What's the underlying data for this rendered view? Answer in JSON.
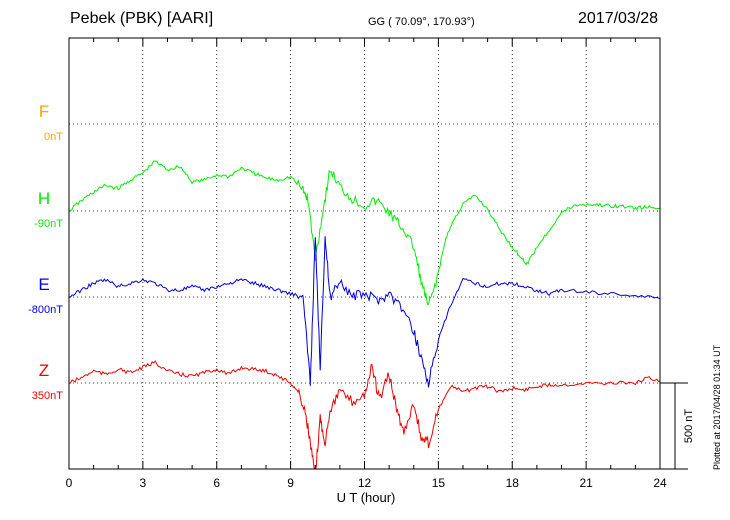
{
  "header": {
    "station": "Pebek (PBK)  [AARI]",
    "coords": "GG ( 70.09°, 170.93°)",
    "date": "2017/03/28"
  },
  "footer": {
    "plotted": "Plotted at 2017/04/28 01:34  UT"
  },
  "chart_data": {
    "type": "line",
    "title": "Pebek (PBK)  [AARI]",
    "xlabel": "U T (hour)",
    "ylabel": "",
    "xlim": [
      0,
      24
    ],
    "xticks": [
      0,
      3,
      6,
      9,
      12,
      15,
      18,
      21,
      24
    ],
    "tick_labels": [
      "0",
      "3",
      "6",
      "9",
      "12",
      "15",
      "18",
      "21",
      "24"
    ],
    "grid": true,
    "y_units": "nT",
    "ylim_nT": [
      -1500,
      1700
    ],
    "scale_bar": {
      "label": "500 nT",
      "value_nT": 500
    },
    "series": [
      {
        "name": "F",
        "baseline_label": "0nT",
        "color": "#ffa500",
        "x": [],
        "y": []
      },
      {
        "name": "H",
        "baseline_label": "-90nT",
        "color": "#00ee00",
        "x": [
          0,
          0.5,
          1,
          1.5,
          2,
          2.5,
          3,
          3.5,
          4,
          4.5,
          5,
          5.5,
          6,
          6.5,
          7,
          7.5,
          8,
          8.5,
          9,
          9.5,
          9.7,
          10,
          10.3,
          10.6,
          11,
          11.5,
          12,
          12.5,
          13,
          13.3,
          13.6,
          14,
          14.3,
          14.6,
          15,
          15.3,
          15.6,
          16,
          16.5,
          17,
          17.5,
          18,
          18.3,
          18.6,
          19,
          19.5,
          20,
          20.5,
          21,
          21.5,
          22,
          22.5,
          23,
          23.5,
          24
        ],
        "y": [
          -90,
          -30,
          20,
          60,
          40,
          90,
          130,
          200,
          150,
          170,
          80,
          90,
          120,
          110,
          160,
          130,
          100,
          90,
          110,
          30,
          -20,
          -370,
          -100,
          150,
          50,
          -20,
          -60,
          -30,
          -100,
          -150,
          -200,
          -300,
          -500,
          -650,
          -450,
          -250,
          -150,
          -50,
          0,
          -80,
          -200,
          -300,
          -350,
          -400,
          -300,
          -200,
          -100,
          -60,
          -50,
          -55,
          -60,
          -65,
          -70,
          -70,
          -75
        ]
      },
      {
        "name": "E",
        "baseline_label": "-800nT",
        "color": "#0000dd",
        "x": [
          0,
          0.5,
          1,
          1.5,
          2,
          2.5,
          3,
          3.5,
          4,
          4.5,
          5,
          5.5,
          6,
          6.5,
          7,
          7.5,
          8,
          8.5,
          9,
          9.5,
          9.8,
          10,
          10.2,
          10.4,
          10.6,
          11,
          11.5,
          12,
          12.5,
          13,
          13.5,
          14,
          14.3,
          14.6,
          15,
          15.5,
          16,
          16.5,
          17,
          17.5,
          18,
          18.5,
          19,
          19.5,
          20,
          21,
          22,
          23,
          24
        ],
        "y": [
          -800,
          -760,
          -720,
          -700,
          -740,
          -720,
          -700,
          -720,
          -760,
          -760,
          -740,
          -760,
          -740,
          -720,
          -700,
          -720,
          -740,
          -760,
          -780,
          -800,
          -1300,
          -450,
          -1200,
          -450,
          -800,
          -700,
          -800,
          -780,
          -820,
          -780,
          -860,
          -1000,
          -1150,
          -1300,
          -1050,
          -850,
          -700,
          -720,
          -740,
          -720,
          -720,
          -740,
          -760,
          -780,
          -760,
          -770,
          -780,
          -790,
          -810
        ]
      },
      {
        "name": "Z",
        "baseline_label": "350nT",
        "color": "#ee0000",
        "x": [
          0,
          0.5,
          1,
          1.5,
          2,
          2.5,
          3,
          3.5,
          4,
          4.5,
          5,
          5.5,
          6,
          6.5,
          7,
          7.5,
          8,
          8.5,
          9,
          9.3,
          9.6,
          9.8,
          10,
          10.2,
          10.4,
          10.6,
          11,
          11.5,
          12,
          12.3,
          12.6,
          13,
          13.3,
          13.6,
          14,
          14.3,
          14.6,
          15,
          15.5,
          16,
          16.5,
          17,
          17.5,
          18,
          18.5,
          19,
          19.5,
          20,
          21,
          22,
          23,
          23.5,
          24
        ],
        "y": [
          350,
          380,
          420,
          400,
          430,
          410,
          440,
          470,
          420,
          400,
          390,
          410,
          430,
          400,
          440,
          430,
          420,
          390,
          350,
          300,
          180,
          0,
          -200,
          150,
          0,
          200,
          300,
          240,
          280,
          450,
          250,
          400,
          200,
          60,
          240,
          30,
          0,
          200,
          330,
          300,
          320,
          330,
          300,
          320,
          310,
          330,
          340,
          340,
          350,
          350,
          350,
          380,
          360
        ]
      }
    ]
  }
}
